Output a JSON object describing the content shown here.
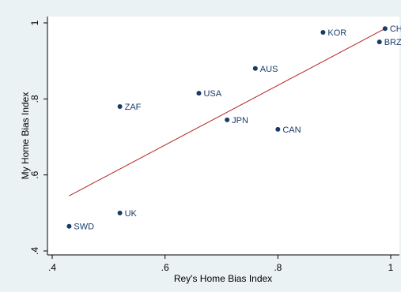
{
  "chart_data": {
    "type": "scatter",
    "xlabel": "Rey's Home Bias Index",
    "ylabel": "My Home Bias Index",
    "xlim": [
      0.4,
      1.0
    ],
    "ylim": [
      0.4,
      1.0
    ],
    "x_ticks": [
      ".4",
      ".6",
      ".8",
      "1"
    ],
    "y_ticks": [
      ".4",
      ".6",
      ".8",
      "1"
    ],
    "grid": false,
    "points": [
      {
        "label": "CH",
        "x": 0.99,
        "y": 0.985
      },
      {
        "label": "KOR",
        "x": 0.88,
        "y": 0.975
      },
      {
        "label": "BRZ",
        "x": 0.98,
        "y": 0.95
      },
      {
        "label": "AUS",
        "x": 0.76,
        "y": 0.88
      },
      {
        "label": "USA",
        "x": 0.66,
        "y": 0.815
      },
      {
        "label": "ZAF",
        "x": 0.52,
        "y": 0.78
      },
      {
        "label": "JPN",
        "x": 0.71,
        "y": 0.745
      },
      {
        "label": "CAN",
        "x": 0.8,
        "y": 0.72
      },
      {
        "label": "UK",
        "x": 0.52,
        "y": 0.5
      },
      {
        "label": "SWD",
        "x": 0.43,
        "y": 0.465
      }
    ],
    "fit_line": {
      "x": [
        0.43,
        0.99
      ],
      "y": [
        0.545,
        0.985
      ]
    },
    "colors": {
      "marker": "#1a3a6a",
      "fit_line": "#b22222",
      "background": "#eaf2f3",
      "plot_area": "#ffffff"
    }
  }
}
